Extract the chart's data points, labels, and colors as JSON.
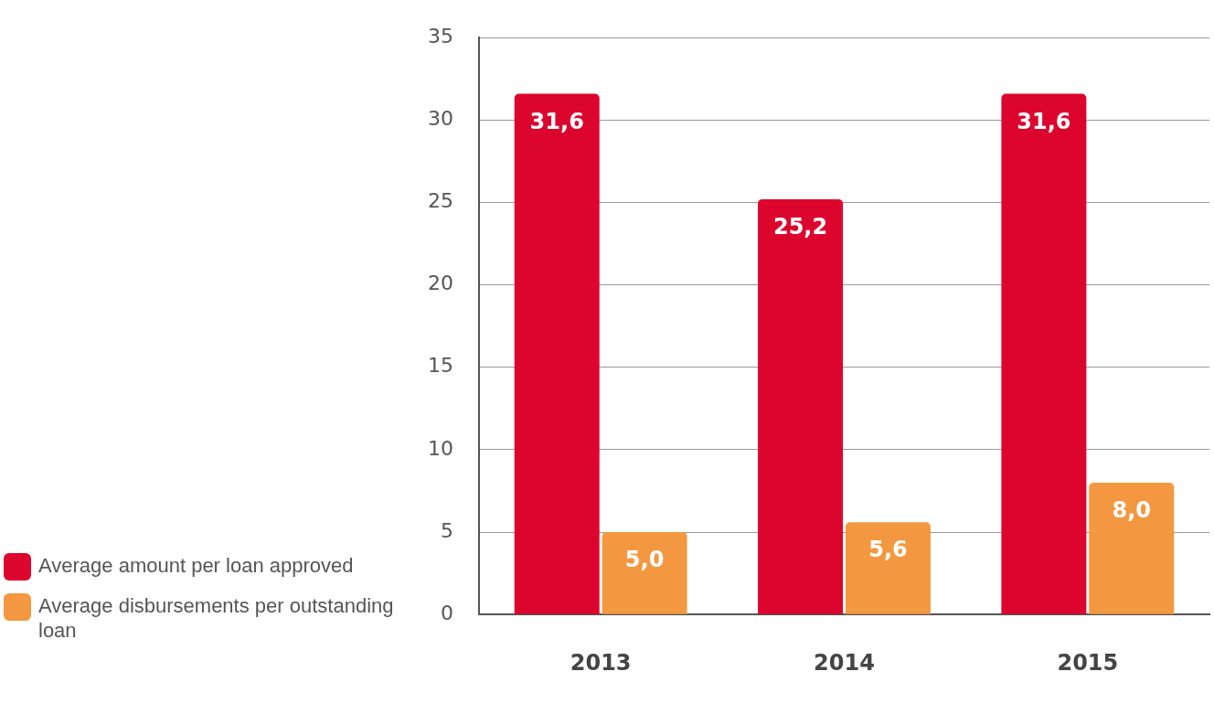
{
  "chart_data": {
    "type": "bar",
    "categories": [
      "2013",
      "2014",
      "2015"
    ],
    "series": [
      {
        "name": "Average amount per loan approved",
        "color": "#dc052d",
        "values": [
          31.6,
          25.2,
          31.6
        ],
        "value_labels": [
          "31,6",
          "25,2",
          "31,6"
        ]
      },
      {
        "name": "Average disbursements per outstanding loan",
        "color": "#f39840",
        "values": [
          5.0,
          5.6,
          8.0
        ],
        "value_labels": [
          "5,0",
          "5,6",
          "8,0"
        ]
      }
    ],
    "ylim": [
      0,
      35
    ],
    "yticks": [
      0,
      5,
      10,
      15,
      20,
      25,
      30,
      35
    ],
    "grid": "y",
    "legend": "left"
  }
}
